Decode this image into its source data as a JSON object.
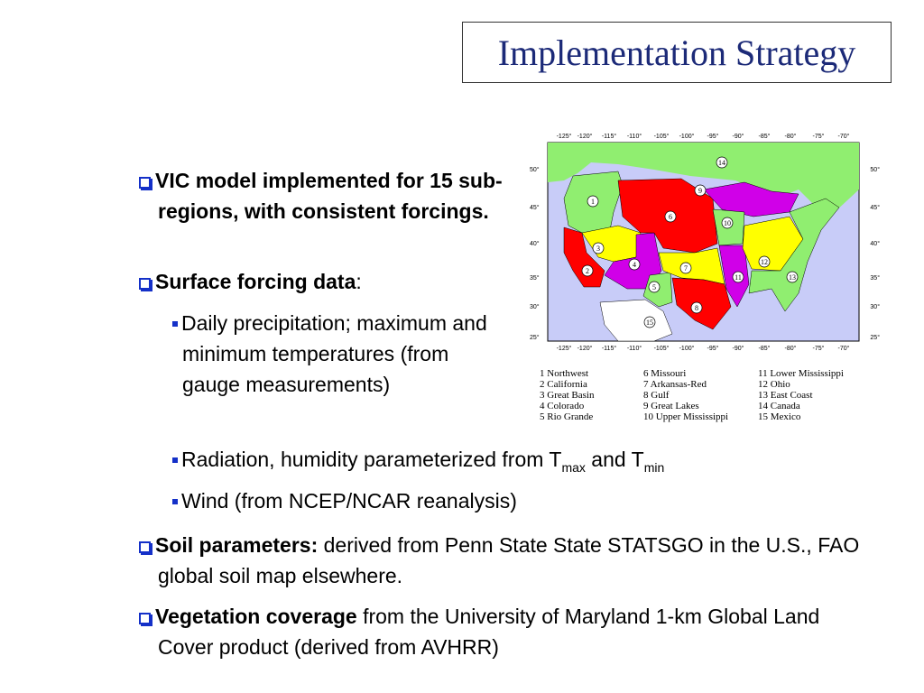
{
  "title": "Implementation Strategy",
  "bullets": {
    "b1": "VIC model implemented for 15 sub-regions, with consistent forcings.",
    "b2_bold": "Surface forcing data",
    "b2_rest": ":",
    "b2a": "Daily precipitation; maximum and minimum temperatures (from gauge measurements)",
    "b2b_pre": "Radiation, humidity  parameterized  from T",
    "b2b_sub1": "max",
    "b2b_mid": " and T",
    "b2b_sub2": "min",
    "b2c": "Wind (from NCEP/NCAR reanalysis)",
    "b3_bold": "Soil parameters:",
    "b3_rest": " derived from Penn State State STATSGO in the U.S., FAO global soil map elsewhere.",
    "b4_bold": "Vegetation coverage",
    "b4_rest": " from the University of Maryland 1-km Global Land Cover product (derived from AVHRR)"
  },
  "map": {
    "lon_labels": [
      "-125°",
      "-120°",
      "-115°",
      "-110°",
      "-105°",
      "-100°",
      "-95°",
      "-90°",
      "-85°",
      "-80°",
      "-75°",
      "-70°"
    ],
    "lat_labels": [
      "50°",
      "45°",
      "40°",
      "35°",
      "30°",
      "25°"
    ],
    "region_numbers": [
      "1",
      "2",
      "3",
      "4",
      "5",
      "6",
      "7",
      "8",
      "9",
      "10",
      "11",
      "12",
      "13",
      "14",
      "15"
    ],
    "colors": {
      "ocean": "#c8ccf8",
      "land": "#90ee70",
      "red": "#ff0000",
      "yellow": "#ffff00",
      "magenta": "#d000e8",
      "mexico": "#ffffff"
    }
  },
  "legend": [
    [
      "1  Northwest",
      "2  California",
      "3  Great Basin",
      "4  Colorado",
      "5  Rio Grande"
    ],
    [
      "6  Missouri",
      "7  Arkansas-Red",
      "8  Gulf",
      "9  Great Lakes",
      "10  Upper Mississippi"
    ],
    [
      "11  Lower Mississippi",
      "12  Ohio",
      "13  East Coast",
      "14  Canada",
      "15  Mexico"
    ]
  ]
}
